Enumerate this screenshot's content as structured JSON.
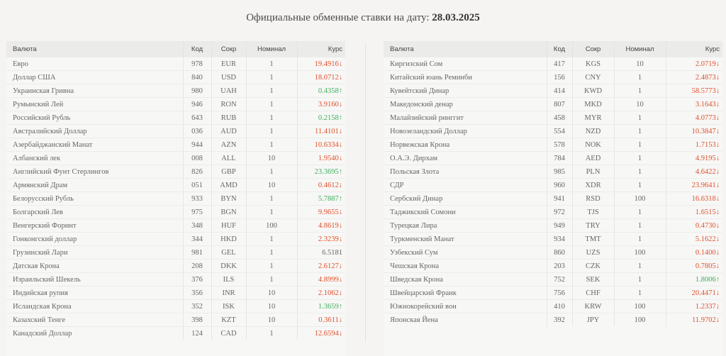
{
  "header": {
    "title_prefix": "Официальные обменные ставки на дату: ",
    "date": "28.03.2025"
  },
  "columns": {
    "name": "Валюта",
    "code": "Код",
    "abbr": "Сокр",
    "nominal": "Номинал",
    "rate": "Курс"
  },
  "colors": {
    "down": "#e0502a",
    "up": "#3fae5c",
    "neutral": "#666666"
  },
  "left_table": [
    {
      "name": "Евро",
      "code": "978",
      "abbr": "EUR",
      "nominal": "1",
      "rate": "19.4916↓",
      "trend": "down"
    },
    {
      "name": "Доллар США",
      "code": "840",
      "abbr": "USD",
      "nominal": "1",
      "rate": "18.0712↓",
      "trend": "down"
    },
    {
      "name": "Украинская Гривна",
      "code": "980",
      "abbr": "UAH",
      "nominal": "1",
      "rate": "0.4358↑",
      "trend": "up"
    },
    {
      "name": "Румынский Лей",
      "code": "946",
      "abbr": "RON",
      "nominal": "1",
      "rate": "3.9160↓",
      "trend": "down"
    },
    {
      "name": "Российский Рубль",
      "code": "643",
      "abbr": "RUB",
      "nominal": "1",
      "rate": "0.2158↑",
      "trend": "up"
    },
    {
      "name": "Австралийский Доллар",
      "code": "036",
      "abbr": "AUD",
      "nominal": "1",
      "rate": "11.4101↓",
      "trend": "down"
    },
    {
      "name": "Азербайджанский Манат",
      "code": "944",
      "abbr": "AZN",
      "nominal": "1",
      "rate": "10.6334↓",
      "trend": "down"
    },
    {
      "name": "Албанский лек",
      "code": "008",
      "abbr": "ALL",
      "nominal": "10",
      "rate": "1.9540↓",
      "trend": "down"
    },
    {
      "name": "Английский Фунт Стерлингов",
      "code": "826",
      "abbr": "GBP",
      "nominal": "1",
      "rate": "23.3695↑",
      "trend": "up"
    },
    {
      "name": "Армянский Драм",
      "code": "051",
      "abbr": "AMD",
      "nominal": "10",
      "rate": "0.4612↓",
      "trend": "down"
    },
    {
      "name": "Белорусский Рубль",
      "code": "933",
      "abbr": "BYN",
      "nominal": "1",
      "rate": "5.7887↑",
      "trend": "up"
    },
    {
      "name": "Болгарский Лев",
      "code": "975",
      "abbr": "BGN",
      "nominal": "1",
      "rate": "9.9655↓",
      "trend": "down"
    },
    {
      "name": "Венгерский Форинт",
      "code": "348",
      "abbr": "HUF",
      "nominal": "100",
      "rate": "4.8619↓",
      "trend": "down"
    },
    {
      "name": "Гонконгский доллар",
      "code": "344",
      "abbr": "HKD",
      "nominal": "1",
      "rate": "2.3239↓",
      "trend": "down"
    },
    {
      "name": "Грузинский Лари",
      "code": "981",
      "abbr": "GEL",
      "nominal": "1",
      "rate": "6.5181",
      "trend": "flat"
    },
    {
      "name": "Датская Крона",
      "code": "208",
      "abbr": "DKK",
      "nominal": "1",
      "rate": "2.6127↓",
      "trend": "down"
    },
    {
      "name": "Израильский Шекель",
      "code": "376",
      "abbr": "ILS",
      "nominal": "1",
      "rate": "4.8999↓",
      "trend": "down"
    },
    {
      "name": "Индийская рупия",
      "code": "356",
      "abbr": "INR",
      "nominal": "10",
      "rate": "2.1062↓",
      "trend": "down"
    },
    {
      "name": "Исландская Крона",
      "code": "352",
      "abbr": "ISK",
      "nominal": "10",
      "rate": "1.3659↑",
      "trend": "up"
    },
    {
      "name": "Казахский Тенге",
      "code": "398",
      "abbr": "KZT",
      "nominal": "10",
      "rate": "0.3611↓",
      "trend": "down"
    },
    {
      "name": "Канадский Доллар",
      "code": "124",
      "abbr": "CAD",
      "nominal": "1",
      "rate": "12.6594↓",
      "trend": "down"
    }
  ],
  "right_table": [
    {
      "name": "Киргизский Сом",
      "code": "417",
      "abbr": "KGS",
      "nominal": "10",
      "rate": "2.0719↓",
      "trend": "down"
    },
    {
      "name": "Китайский юань Реминби",
      "code": "156",
      "abbr": "CNY",
      "nominal": "1",
      "rate": "2.4873↓",
      "trend": "down"
    },
    {
      "name": "Кувейтский Динар",
      "code": "414",
      "abbr": "KWD",
      "nominal": "1",
      "rate": "58.5773↓",
      "trend": "down"
    },
    {
      "name": "Македонский денар",
      "code": "807",
      "abbr": "MKD",
      "nominal": "10",
      "rate": "3.1643↓",
      "trend": "down"
    },
    {
      "name": "Малайзийский ринггит",
      "code": "458",
      "abbr": "MYR",
      "nominal": "1",
      "rate": "4.0773↓",
      "trend": "down"
    },
    {
      "name": "Новозеландский Доллар",
      "code": "554",
      "abbr": "NZD",
      "nominal": "1",
      "rate": "10.3847↓",
      "trend": "down"
    },
    {
      "name": "Норвежская Крона",
      "code": "578",
      "abbr": "NOK",
      "nominal": "1",
      "rate": "1.7153↓",
      "trend": "down"
    },
    {
      "name": "О.А.Э. Дирхам",
      "code": "784",
      "abbr": "AED",
      "nominal": "1",
      "rate": "4.9195↓",
      "trend": "down"
    },
    {
      "name": "Польская Злота",
      "code": "985",
      "abbr": "PLN",
      "nominal": "1",
      "rate": "4.6422↓",
      "trend": "down"
    },
    {
      "name": "СДР",
      "code": "960",
      "abbr": "XDR",
      "nominal": "1",
      "rate": "23.9641↓",
      "trend": "down"
    },
    {
      "name": "Сербский Динар",
      "code": "941",
      "abbr": "RSD",
      "nominal": "100",
      "rate": "16.6318↓",
      "trend": "down"
    },
    {
      "name": "Таджикский Сомони",
      "code": "972",
      "abbr": "TJS",
      "nominal": "1",
      "rate": "1.6515↓",
      "trend": "down"
    },
    {
      "name": "Турецкая Лира",
      "code": "949",
      "abbr": "TRY",
      "nominal": "1",
      "rate": "0.4730↓",
      "trend": "down"
    },
    {
      "name": "Туркменский Манат",
      "code": "934",
      "abbr": "TMT",
      "nominal": "1",
      "rate": "5.1622↓",
      "trend": "down"
    },
    {
      "name": "Узбекский Сум",
      "code": "860",
      "abbr": "UZS",
      "nominal": "100",
      "rate": "0.1400↓",
      "trend": "down"
    },
    {
      "name": "Чешская Крона",
      "code": "203",
      "abbr": "CZK",
      "nominal": "1",
      "rate": "0.7805↓",
      "trend": "down"
    },
    {
      "name": "Шведская Крона",
      "code": "752",
      "abbr": "SEK",
      "nominal": "1",
      "rate": "1.8006↑",
      "trend": "up"
    },
    {
      "name": "Швейцарский Франк",
      "code": "756",
      "abbr": "CHF",
      "nominal": "1",
      "rate": "20.4471↓",
      "trend": "down"
    },
    {
      "name": "Южнокорейский вон",
      "code": "410",
      "abbr": "KRW",
      "nominal": "100",
      "rate": "1.2337↓",
      "trend": "down"
    },
    {
      "name": "Японская Йена",
      "code": "392",
      "abbr": "JPY",
      "nominal": "100",
      "rate": "11.9702↓",
      "trend": "down"
    }
  ]
}
